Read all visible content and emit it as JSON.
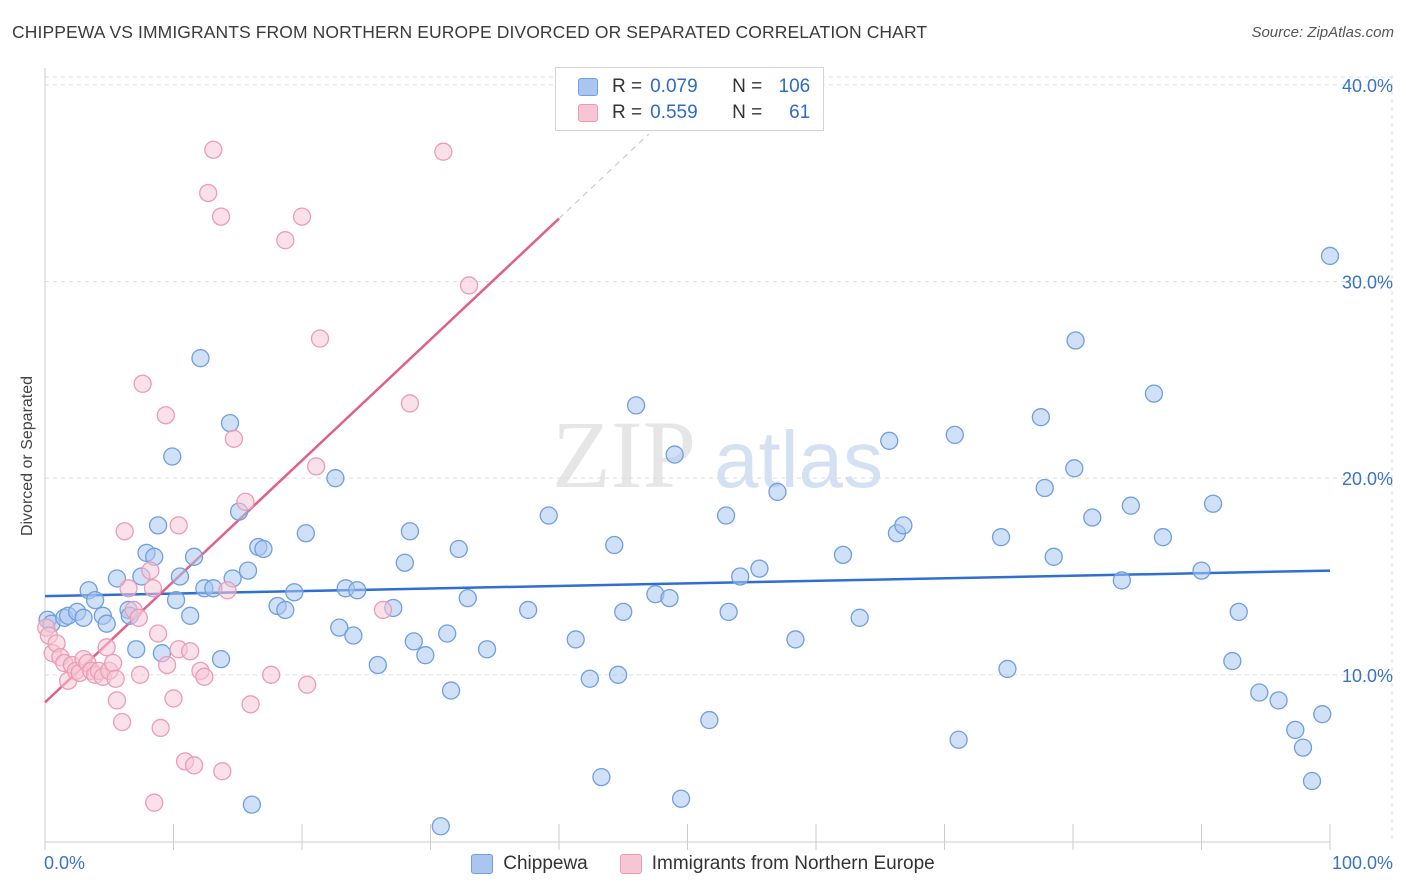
{
  "chart_data": {
    "type": "scatter",
    "title": "CHIPPEWA VS IMMIGRANTS FROM NORTHERN EUROPE DIVORCED OR SEPARATED CORRELATION CHART",
    "source": "Source: ZipAtlas.com",
    "watermark": {
      "zip": "ZIP",
      "atlas": "atlas"
    },
    "ylabel": "Divorced or Separated",
    "xlabel": "",
    "xlim": [
      0,
      100
    ],
    "ylim": [
      1.5,
      40.5
    ],
    "x_tick_labels": [
      "0.0%",
      "100.0%"
    ],
    "y_ticks": [
      {
        "value": 10,
        "label": "10.0%"
      },
      {
        "value": 20,
        "label": "20.0%"
      },
      {
        "value": 30,
        "label": "30.0%"
      },
      {
        "value": 40,
        "label": "40.0%"
      }
    ],
    "legend": {
      "rows": [
        {
          "r_label": "R =",
          "r_value": "0.079",
          "n_label": "N =",
          "n_value": "106"
        },
        {
          "r_label": "R =",
          "r_value": "0.559",
          "n_label": "N =",
          "n_value": "61"
        }
      ]
    },
    "series": [
      {
        "name": "Chippewa",
        "color": "#6f9fe0",
        "fill": "#a9c6ee",
        "line_color": "#2e6fcf",
        "trend": {
          "x": [
            0,
            100
          ],
          "y": [
            14.0,
            15.3
          ],
          "dashed_extension": false
        },
        "points": [
          [
            0.2,
            12.8
          ],
          [
            0.5,
            12.6
          ],
          [
            1.5,
            12.9
          ],
          [
            1.8,
            13.0
          ],
          [
            2.5,
            13.2
          ],
          [
            3.0,
            12.9
          ],
          [
            3.4,
            14.3
          ],
          [
            3.9,
            13.8
          ],
          [
            4.5,
            13.0
          ],
          [
            4.8,
            12.6
          ],
          [
            5.6,
            14.9
          ],
          [
            6.5,
            13.3
          ],
          [
            6.6,
            13.0
          ],
          [
            7.1,
            11.3
          ],
          [
            7.5,
            15.0
          ],
          [
            7.9,
            16.2
          ],
          [
            8.5,
            16.0
          ],
          [
            8.8,
            17.6
          ],
          [
            9.1,
            11.1
          ],
          [
            9.9,
            21.1
          ],
          [
            10.2,
            13.8
          ],
          [
            10.5,
            15.0
          ],
          [
            11.3,
            13.0
          ],
          [
            11.6,
            16.0
          ],
          [
            12.1,
            26.1
          ],
          [
            12.4,
            14.4
          ],
          [
            13.1,
            14.4
          ],
          [
            13.7,
            10.8
          ],
          [
            14.4,
            22.8
          ],
          [
            14.6,
            14.9
          ],
          [
            15.1,
            18.3
          ],
          [
            15.8,
            15.3
          ],
          [
            16.1,
            3.4
          ],
          [
            16.6,
            16.5
          ],
          [
            17.0,
            16.4
          ],
          [
            18.1,
            13.5
          ],
          [
            18.7,
            13.3
          ],
          [
            19.4,
            14.2
          ],
          [
            20.3,
            17.2
          ],
          [
            22.6,
            20.0
          ],
          [
            22.9,
            12.4
          ],
          [
            23.4,
            14.4
          ],
          [
            24.0,
            12.0
          ],
          [
            24.3,
            14.3
          ],
          [
            25.9,
            10.5
          ],
          [
            27.1,
            13.4
          ],
          [
            28.0,
            15.7
          ],
          [
            28.4,
            17.3
          ],
          [
            28.7,
            11.7
          ],
          [
            29.6,
            11.0
          ],
          [
            30.8,
            2.3
          ],
          [
            31.3,
            12.1
          ],
          [
            31.6,
            9.2
          ],
          [
            32.2,
            16.4
          ],
          [
            32.9,
            13.9
          ],
          [
            34.4,
            11.3
          ],
          [
            37.6,
            13.3
          ],
          [
            39.2,
            18.1
          ],
          [
            41.3,
            11.8
          ],
          [
            42.4,
            9.8
          ],
          [
            43.3,
            4.8
          ],
          [
            44.3,
            16.6
          ],
          [
            44.6,
            10.0
          ],
          [
            45.0,
            13.2
          ],
          [
            46.0,
            23.7
          ],
          [
            47.5,
            14.1
          ],
          [
            48.6,
            13.9
          ],
          [
            49.0,
            21.2
          ],
          [
            49.5,
            3.7
          ],
          [
            51.7,
            7.7
          ],
          [
            53.0,
            18.1
          ],
          [
            53.2,
            13.2
          ],
          [
            54.1,
            15.0
          ],
          [
            55.6,
            15.4
          ],
          [
            57.0,
            19.3
          ],
          [
            58.4,
            11.8
          ],
          [
            62.1,
            16.1
          ],
          [
            63.4,
            12.9
          ],
          [
            65.7,
            21.9
          ],
          [
            66.3,
            17.2
          ],
          [
            66.8,
            17.6
          ],
          [
            70.8,
            22.2
          ],
          [
            71.1,
            6.7
          ],
          [
            74.4,
            17.0
          ],
          [
            74.9,
            10.3
          ],
          [
            77.5,
            23.1
          ],
          [
            77.8,
            19.5
          ],
          [
            78.5,
            16.0
          ],
          [
            80.1,
            20.5
          ],
          [
            80.2,
            27.0
          ],
          [
            81.5,
            18.0
          ],
          [
            83.8,
            14.8
          ],
          [
            84.5,
            18.6
          ],
          [
            86.3,
            24.3
          ],
          [
            87.0,
            17.0
          ],
          [
            90.0,
            15.3
          ],
          [
            90.9,
            18.7
          ],
          [
            92.4,
            10.7
          ],
          [
            92.9,
            13.2
          ],
          [
            94.5,
            9.1
          ],
          [
            96.0,
            8.7
          ],
          [
            97.3,
            7.2
          ],
          [
            97.9,
            6.3
          ],
          [
            98.6,
            4.6
          ],
          [
            99.4,
            8.0
          ],
          [
            100.0,
            31.3
          ]
        ]
      },
      {
        "name": "Immigrants from Northern Europe",
        "color": "#eb9cb4",
        "fill": "#f6c6d5",
        "line_color": "#e0608a",
        "trend": {
          "x": [
            0,
            40
          ],
          "y": [
            8.6,
            33.2
          ],
          "dashed_extension": true,
          "dash_to_x": 47
        },
        "points": [
          [
            0.1,
            12.4
          ],
          [
            0.3,
            12.0
          ],
          [
            0.6,
            11.1
          ],
          [
            0.9,
            11.6
          ],
          [
            1.2,
            10.9
          ],
          [
            1.5,
            10.6
          ],
          [
            1.8,
            9.7
          ],
          [
            2.1,
            10.5
          ],
          [
            2.4,
            10.2
          ],
          [
            2.7,
            10.1
          ],
          [
            3.0,
            10.8
          ],
          [
            3.3,
            10.6
          ],
          [
            3.6,
            10.2
          ],
          [
            3.9,
            10.0
          ],
          [
            4.2,
            10.2
          ],
          [
            4.5,
            9.9
          ],
          [
            4.8,
            11.4
          ],
          [
            5.0,
            10.2
          ],
          [
            5.3,
            10.6
          ],
          [
            5.5,
            9.8
          ],
          [
            5.6,
            8.7
          ],
          [
            6.0,
            7.6
          ],
          [
            6.2,
            17.3
          ],
          [
            6.5,
            14.4
          ],
          [
            6.9,
            13.3
          ],
          [
            7.3,
            12.9
          ],
          [
            7.4,
            10.0
          ],
          [
            7.6,
            24.8
          ],
          [
            8.2,
            15.3
          ],
          [
            8.4,
            14.4
          ],
          [
            8.5,
            3.5
          ],
          [
            8.8,
            12.1
          ],
          [
            9.0,
            7.3
          ],
          [
            9.4,
            23.2
          ],
          [
            9.5,
            10.5
          ],
          [
            10.0,
            8.8
          ],
          [
            10.4,
            11.3
          ],
          [
            10.4,
            17.6
          ],
          [
            10.9,
            5.6
          ],
          [
            11.3,
            11.2
          ],
          [
            11.6,
            5.4
          ],
          [
            12.1,
            10.2
          ],
          [
            12.4,
            9.9
          ],
          [
            12.7,
            34.5
          ],
          [
            13.1,
            36.7
          ],
          [
            13.7,
            33.3
          ],
          [
            13.8,
            5.1
          ],
          [
            14.2,
            14.3
          ],
          [
            14.7,
            22.0
          ],
          [
            15.6,
            18.8
          ],
          [
            16.0,
            8.5
          ],
          [
            17.6,
            10.0
          ],
          [
            18.7,
            32.1
          ],
          [
            20.0,
            33.3
          ],
          [
            20.4,
            9.5
          ],
          [
            21.1,
            20.6
          ],
          [
            21.4,
            27.1
          ],
          [
            26.3,
            13.3
          ],
          [
            28.4,
            23.8
          ],
          [
            31.0,
            36.6
          ],
          [
            33.0,
            29.8
          ]
        ]
      }
    ]
  }
}
